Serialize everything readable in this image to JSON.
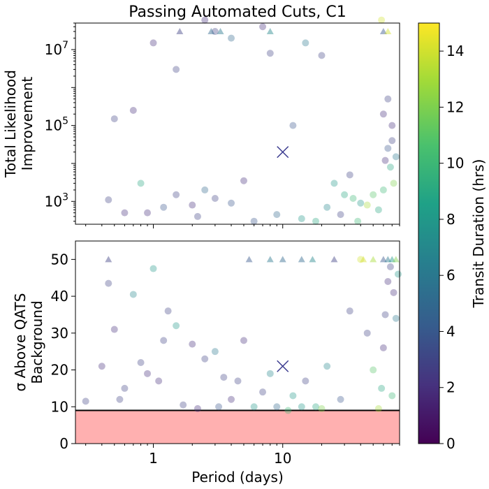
{
  "title": "Passing Automated Cuts, C1",
  "xlabel": "Period (days)",
  "chart_data": [
    {
      "type": "scatter",
      "panel": "top",
      "xscale": "log",
      "yscale": "log",
      "xlim": [
        0.25,
        80
      ],
      "ylim": [
        250,
        50000000
      ],
      "ylabel_lines": [
        "Total Likelihood",
        "Improvement"
      ],
      "xticks": [
        {
          "value": 1,
          "label": "1"
        },
        {
          "value": 10,
          "label": "10"
        }
      ],
      "yticks": [
        {
          "value": 1000,
          "base": "10",
          "exp": "3"
        },
        {
          "value": 100000,
          "base": "10",
          "exp": "5"
        },
        {
          "value": 10000000,
          "base": "10",
          "exp": "7"
        }
      ],
      "marker": {
        "x": 10,
        "y": 20000
      },
      "points": [
        [
          0.45,
          1100,
          3
        ],
        [
          0.6,
          500,
          2
        ],
        [
          0.8,
          3000,
          9
        ],
        [
          1.2,
          700,
          4
        ],
        [
          1.5,
          1500,
          3
        ],
        [
          2.0,
          800,
          2
        ],
        [
          2.5,
          2000,
          5
        ],
        [
          3.0,
          1200,
          3
        ],
        [
          4.0,
          900,
          4
        ],
        [
          5.0,
          3500,
          2
        ],
        [
          0.5,
          150000,
          3
        ],
        [
          0.7,
          250000,
          2
        ],
        [
          1.0,
          15000000,
          2
        ],
        [
          1.5,
          3000000,
          3
        ],
        [
          2.5,
          60000000,
          2
        ],
        [
          3.0,
          30000000,
          3
        ],
        [
          4.0,
          20000000,
          5
        ],
        [
          7.0,
          40000000,
          2
        ],
        [
          8.0,
          8000000,
          3
        ],
        [
          12,
          100000,
          4
        ],
        [
          15,
          15000000,
          6
        ],
        [
          20,
          7000000,
          3
        ],
        [
          25,
          3000,
          8
        ],
        [
          30,
          1500,
          9
        ],
        [
          35,
          1200,
          10
        ],
        [
          40,
          900,
          8
        ],
        [
          45,
          800,
          13
        ],
        [
          50,
          1500,
          11
        ],
        [
          55,
          600,
          9
        ],
        [
          60,
          2000,
          10
        ],
        [
          62,
          12000,
          2
        ],
        [
          65,
          25000,
          4
        ],
        [
          68,
          8000,
          9
        ],
        [
          70,
          40000,
          3
        ],
        [
          72,
          3000,
          12
        ],
        [
          75,
          15000,
          6
        ],
        [
          60,
          200000,
          2
        ],
        [
          65,
          500000,
          3
        ],
        [
          70,
          100000,
          2
        ],
        [
          58,
          60000000,
          14
        ],
        [
          0.9,
          500,
          2
        ],
        [
          2.2,
          400,
          3
        ],
        [
          6.0,
          300,
          4
        ],
        [
          9.0,
          450,
          5
        ],
        [
          14,
          350,
          8
        ],
        [
          18,
          300,
          9
        ],
        [
          22,
          700,
          7
        ],
        [
          28,
          450,
          3
        ],
        [
          33,
          5000,
          3
        ],
        [
          38,
          300,
          10
        ]
      ],
      "triangles": [
        [
          1.6,
          3
        ],
        [
          2.8,
          5
        ],
        [
          3.3,
          6
        ],
        [
          8.0,
          7
        ],
        [
          60,
          4
        ],
        [
          65,
          14
        ]
      ]
    },
    {
      "type": "scatter",
      "panel": "bottom",
      "xscale": "log",
      "yscale": "linear",
      "xlim": [
        0.25,
        80
      ],
      "ylim": [
        0,
        55
      ],
      "ylabel_lines": [
        "σ Above QATS",
        "Background"
      ],
      "xticks": [
        {
          "value": 1,
          "label": "1"
        },
        {
          "value": 10,
          "label": "10"
        }
      ],
      "yticks": [
        {
          "value": 0,
          "label": "0"
        },
        {
          "value": 10,
          "label": "10"
        },
        {
          "value": 20,
          "label": "20"
        },
        {
          "value": 30,
          "label": "30"
        },
        {
          "value": 40,
          "label": "40"
        },
        {
          "value": 50,
          "label": "50"
        }
      ],
      "threshold": 9,
      "threshold_color": "#ffb0b0",
      "marker": {
        "x": 10,
        "y": 21
      },
      "points": [
        [
          0.3,
          11.5,
          3
        ],
        [
          0.4,
          21,
          2
        ],
        [
          0.45,
          43.5,
          3
        ],
        [
          0.5,
          31,
          2
        ],
        [
          0.55,
          12,
          3
        ],
        [
          0.7,
          40.5,
          7
        ],
        [
          0.8,
          22,
          3
        ],
        [
          1.0,
          47.5,
          8
        ],
        [
          1.1,
          17,
          2
        ],
        [
          1.3,
          36,
          3
        ],
        [
          1.5,
          32,
          8
        ],
        [
          1.7,
          10.5,
          3
        ],
        [
          2.0,
          27,
          2
        ],
        [
          2.5,
          23,
          3
        ],
        [
          3.0,
          25,
          6
        ],
        [
          3.5,
          18,
          3
        ],
        [
          4.0,
          12,
          2
        ],
        [
          5.0,
          28,
          2
        ],
        [
          6.0,
          10,
          8
        ],
        [
          7.0,
          14,
          3
        ],
        [
          8.0,
          19,
          7
        ],
        [
          12,
          13,
          8
        ],
        [
          15,
          17,
          3
        ],
        [
          18,
          10,
          9
        ],
        [
          22,
          21,
          7
        ],
        [
          28,
          12,
          4
        ],
        [
          33,
          36,
          3
        ],
        [
          40,
          50,
          14
        ],
        [
          45,
          30,
          3
        ],
        [
          50,
          20,
          11
        ],
        [
          55,
          9.5,
          13
        ],
        [
          58,
          15,
          9
        ],
        [
          60,
          26,
          2
        ],
        [
          62,
          35,
          3
        ],
        [
          65,
          44,
          2
        ],
        [
          68,
          48,
          3
        ],
        [
          70,
          13,
          10
        ],
        [
          72,
          41,
          2
        ],
        [
          75,
          34,
          6
        ],
        [
          78,
          46,
          8
        ],
        [
          0.6,
          15,
          3
        ],
        [
          0.9,
          19,
          2
        ],
        [
          1.2,
          28,
          3
        ],
        [
          2.2,
          9.5,
          2
        ],
        [
          3.2,
          10,
          4
        ],
        [
          4.5,
          17,
          3
        ],
        [
          9,
          10,
          5
        ],
        [
          11,
          9,
          10
        ],
        [
          14,
          10,
          8
        ],
        [
          20,
          9.5,
          12
        ]
      ],
      "triangles": [
        [
          0.45,
          3
        ],
        [
          5.5,
          4
        ],
        [
          8,
          6
        ],
        [
          10,
          5
        ],
        [
          14,
          5
        ],
        [
          17,
          7
        ],
        [
          25,
          3
        ],
        [
          42,
          14
        ],
        [
          50,
          13
        ],
        [
          60,
          4
        ],
        [
          65,
          6
        ],
        [
          70,
          8
        ],
        [
          75,
          12
        ]
      ]
    }
  ],
  "colorbar": {
    "label": "Transit Duration (hrs)",
    "min": 0,
    "max": 15,
    "ticks": [
      "0",
      "2",
      "4",
      "6",
      "8",
      "10",
      "12",
      "14"
    ],
    "colormap": "viridis"
  }
}
